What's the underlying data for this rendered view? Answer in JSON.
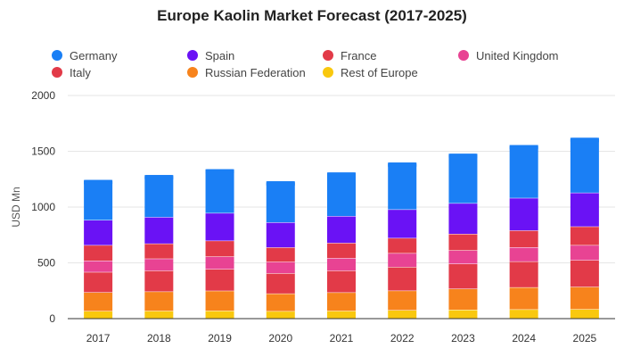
{
  "chart_data": {
    "type": "bar",
    "stacked": true,
    "title": "Europe Kaolin Market Forecast (2017-2025)",
    "xlabel": "",
    "ylabel": "USD Mn",
    "ylim": [
      0,
      2000
    ],
    "yticks": [
      0,
      500,
      1000,
      1500,
      2000
    ],
    "grid": true,
    "legend_position": "top",
    "categories": [
      "2017",
      "2018",
      "2019",
      "2020",
      "2021",
      "2022",
      "2023",
      "2024",
      "2025"
    ],
    "series": [
      {
        "name": "Rest of Europe",
        "color": "#F9C80E",
        "values": [
          68,
          70,
          71,
          67,
          70,
          76,
          80,
          83,
          85
        ]
      },
      {
        "name": "Russian Federation",
        "color": "#F7831C",
        "values": [
          168,
          173,
          179,
          158,
          165,
          175,
          188,
          198,
          200
        ]
      },
      {
        "name": "Italy",
        "color": "#E23A48",
        "values": [
          182,
          188,
          194,
          182,
          196,
          213,
          224,
          232,
          240
        ]
      },
      {
        "name": "United Kingdom",
        "color": "#E84393",
        "values": [
          102,
          107,
          113,
          103,
          112,
          123,
          121,
          127,
          134
        ]
      },
      {
        "name": "France",
        "color": "#E23A48",
        "values": [
          139,
          135,
          142,
          129,
          136,
          136,
          147,
          151,
          167
        ]
      },
      {
        "name": "Spain",
        "color": "#6A12F5",
        "values": [
          225,
          238,
          248,
          224,
          241,
          256,
          275,
          291,
          303
        ]
      },
      {
        "name": "Germany",
        "color": "#1A7FF5",
        "values": [
          359,
          376,
          392,
          368,
          390,
          420,
          443,
          474,
          492
        ]
      }
    ],
    "legend": [
      {
        "name": "Germany",
        "color": "#1A7FF5"
      },
      {
        "name": "Spain",
        "color": "#6A12F5"
      },
      {
        "name": "France",
        "color": "#E23A48"
      },
      {
        "name": "United Kingdom",
        "color": "#E84393"
      },
      {
        "name": "Italy",
        "color": "#E23A48"
      },
      {
        "name": "Russian Federation",
        "color": "#F7831C"
      },
      {
        "name": "Rest of Europe",
        "color": "#F9C80E"
      }
    ],
    "colors": {
      "grid": "#E6E6E6",
      "axis": "#333333",
      "text": "#333333"
    }
  }
}
